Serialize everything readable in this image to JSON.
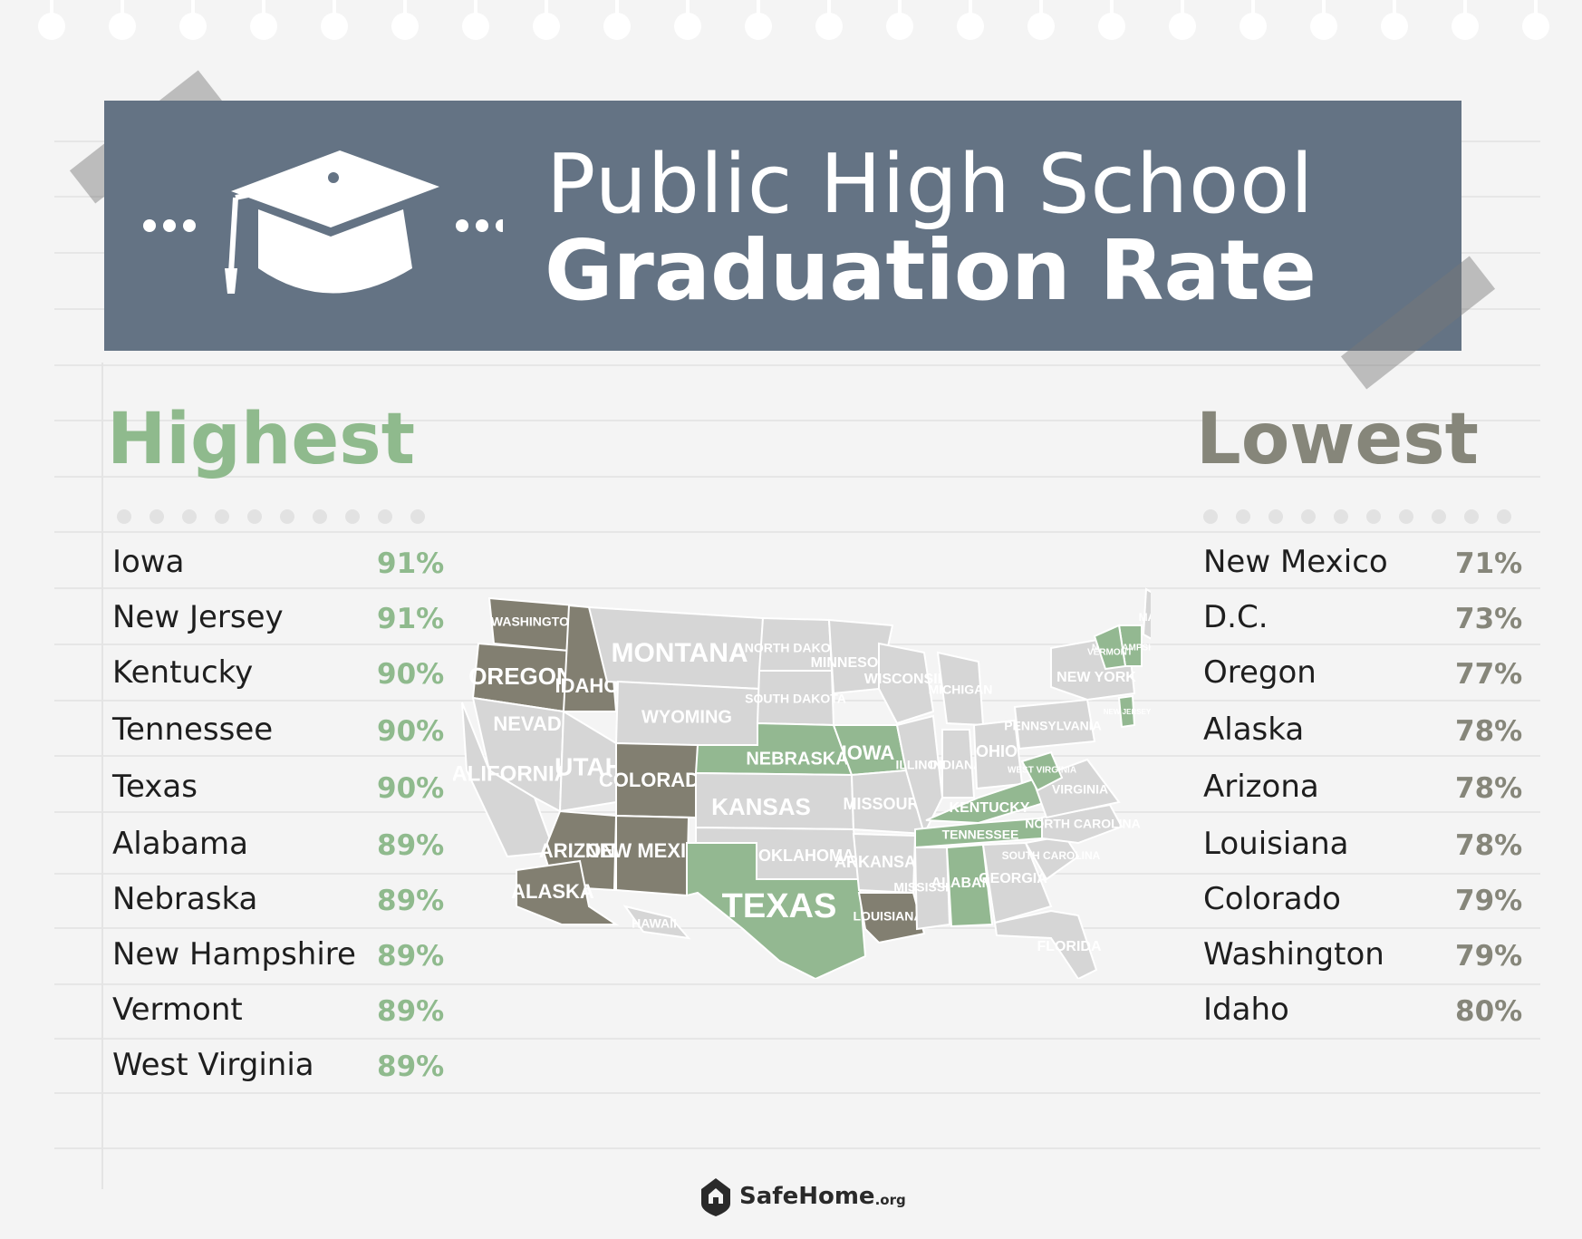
{
  "header": {
    "title_line1": "Public High School",
    "title_line2": "Graduation Rate"
  },
  "highest": {
    "title": "Highest",
    "color": "#8fba8d",
    "items": [
      {
        "state": "Iowa",
        "rate": "91%"
      },
      {
        "state": "New Jersey",
        "rate": "91%"
      },
      {
        "state": "Kentucky",
        "rate": "90%"
      },
      {
        "state": "Tennessee",
        "rate": "90%"
      },
      {
        "state": "Texas",
        "rate": "90%"
      },
      {
        "state": "Alabama",
        "rate": "89%"
      },
      {
        "state": "Nebraska",
        "rate": "89%"
      },
      {
        "state": "New Hampshire",
        "rate": "89%"
      },
      {
        "state": "Vermont",
        "rate": "89%"
      },
      {
        "state": "West Virginia",
        "rate": "89%"
      }
    ]
  },
  "lowest": {
    "title": "Lowest",
    "color": "#86867a",
    "items": [
      {
        "state": "New Mexico",
        "rate": "71%"
      },
      {
        "state": "D.C.",
        "rate": "73%"
      },
      {
        "state": "Oregon",
        "rate": "77%"
      },
      {
        "state": "Alaska",
        "rate": "78%"
      },
      {
        "state": "Arizona",
        "rate": "78%"
      },
      {
        "state": "Louisiana",
        "rate": "78%"
      },
      {
        "state": "Colorado",
        "rate": "79%"
      },
      {
        "state": "Washington",
        "rate": "79%"
      },
      {
        "state": "Idaho",
        "rate": "80%"
      }
    ]
  },
  "map": {
    "colors": {
      "highest": "#93b891",
      "lowest": "#827f71",
      "other": "#d6d6d6",
      "label": "#ffffff"
    },
    "labels": {
      "washington": "WASHINGTON",
      "oregon": "OREGON",
      "idaho": "IDAHO",
      "montana": "MONTANA",
      "wyoming": "WYOMING",
      "nevada": "NEVADA",
      "california": "CALIFORNIA",
      "utah": "UTAH",
      "colorado": "COLORADO",
      "arizona": "ARIZONA",
      "new_mexico": "NEW MEXICO",
      "north_dakota": "NORTH DAKOTA",
      "south_dakota": "SOUTH DAKOTA",
      "nebraska": "NEBRASKA",
      "kansas": "KANSAS",
      "oklahoma": "OKLAHOMA",
      "texas": "TEXAS",
      "minnesota": "MINNESOTA",
      "iowa": "IOWA",
      "missouri": "MISSOURI",
      "arkansas": "ARKANSAS",
      "louisiana": "LOUISIANA",
      "wisconsin": "WISCONSIN",
      "illinois": "ILLINOIS",
      "michigan": "MICHIGAN",
      "indiana": "INDIANA",
      "ohio": "OHIO",
      "kentucky": "KENTUCKY",
      "tennessee": "TENNESSEE",
      "mississippi": "MISSISSIPPI",
      "alabama": "ALABAMA",
      "georgia": "GEORGIA",
      "florida": "FLORIDA",
      "south_carolina": "SOUTH CAROLINA",
      "north_carolina": "NORTH CAROLINA",
      "virginia": "VIRGINIA",
      "west_virginia": "WEST VIRGINIA",
      "pennsylvania": "PENNSYLVANIA",
      "new_york": "NEW YORK",
      "maine": "MAINE",
      "new_hampshire": "NEW HAMPSHIRE",
      "new_jersey": "NEW JERSEY",
      "vermont": "VERMONT",
      "alaska": "ALASKA",
      "hawaii": "HAWAII"
    }
  },
  "footer": {
    "brand": "SafeHome",
    "tld": ".org"
  }
}
